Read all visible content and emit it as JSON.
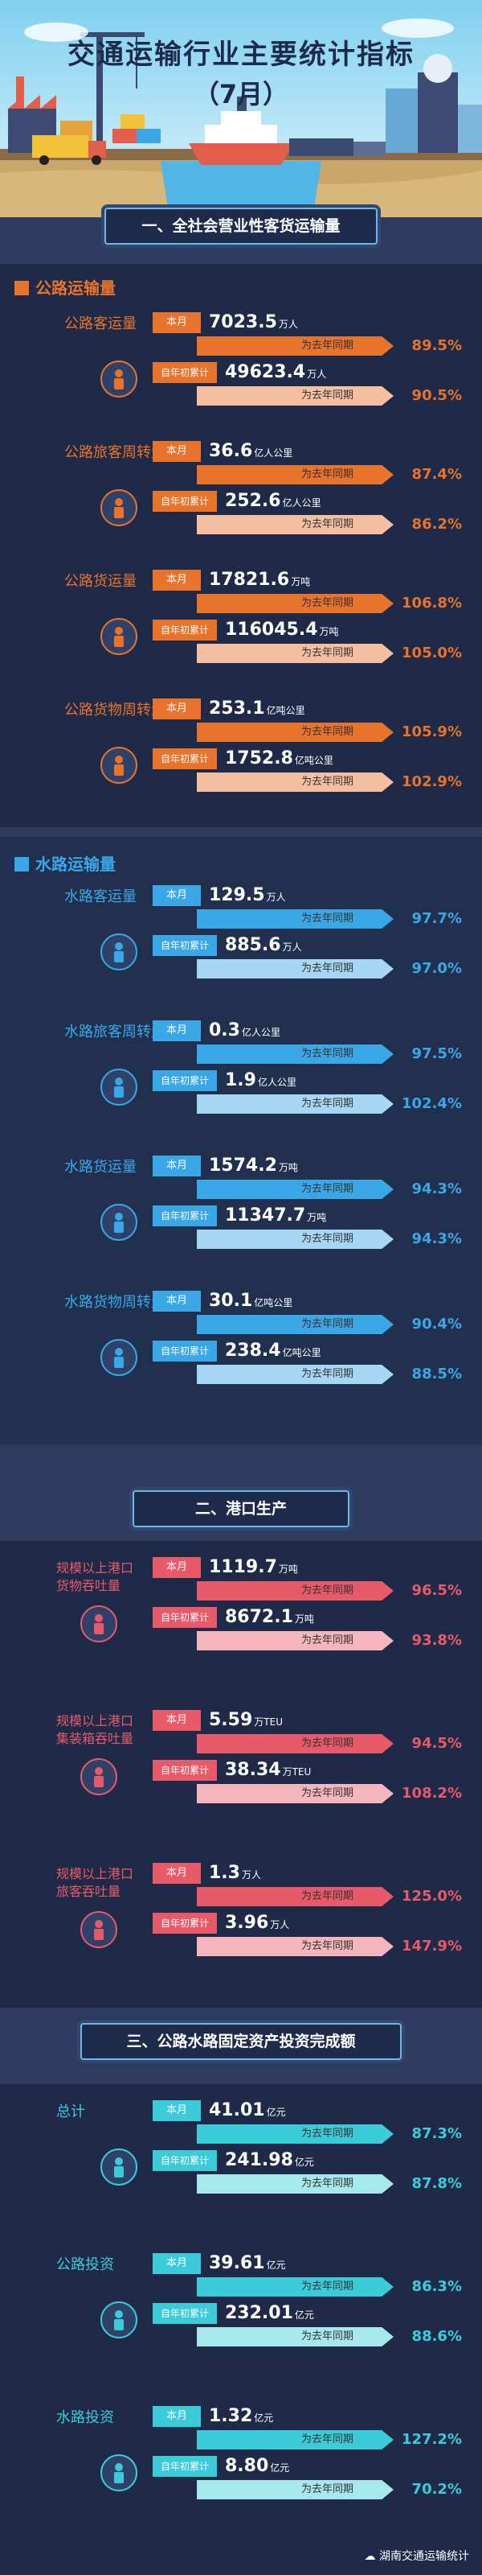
{
  "header": {
    "title": "交通运输行业主要统计指标",
    "subtitle": "（7月）"
  },
  "sections": {
    "s1": "一、全社会营业性客货运输量",
    "s2": "二、港口生产",
    "s3": "三、公路水路固定资产投资完成额"
  },
  "common": {
    "month_tag": "本月",
    "ytd_tag": "自年初累计",
    "cmp_label": "为去年同期"
  },
  "road": {
    "title": "公路运输量",
    "color": "#e8732a",
    "metrics": [
      {
        "label": "公路客运量",
        "month": "7023.5",
        "month_unit": "万人",
        "month_pct": "89.5%",
        "ytd": "49623.4",
        "ytd_unit": "万人",
        "ytd_pct": "90.5%"
      },
      {
        "label": "公路旅客周转量",
        "month": "36.6",
        "month_unit": "亿人公里",
        "month_pct": "87.4%",
        "ytd": "252.6",
        "ytd_unit": "亿人公里",
        "ytd_pct": "86.2%"
      },
      {
        "label": "公路货运量",
        "month": "17821.6",
        "month_unit": "万吨",
        "month_pct": "106.8%",
        "ytd": "116045.4",
        "ytd_unit": "万吨",
        "ytd_pct": "105.0%"
      },
      {
        "label": "公路货物周转量",
        "month": "253.1",
        "month_unit": "亿吨公里",
        "month_pct": "105.9%",
        "ytd": "1752.8",
        "ytd_unit": "亿吨公里",
        "ytd_pct": "102.9%"
      }
    ]
  },
  "water": {
    "title": "水路运输量",
    "color": "#3aa7e6",
    "metrics": [
      {
        "label": "水路客运量",
        "month": "129.5",
        "month_unit": "万人",
        "month_pct": "97.7%",
        "ytd": "885.6",
        "ytd_unit": "万人",
        "ytd_pct": "97.0%"
      },
      {
        "label": "水路旅客周转量",
        "month": "0.3",
        "month_unit": "亿人公里",
        "month_pct": "97.5%",
        "ytd": "1.9",
        "ytd_unit": "亿人公里",
        "ytd_pct": "102.4%"
      },
      {
        "label": "水路货运量",
        "month": "1574.2",
        "month_unit": "万吨",
        "month_pct": "94.3%",
        "ytd": "11347.7",
        "ytd_unit": "万吨",
        "ytd_pct": "94.3%"
      },
      {
        "label": "水路货物周转量",
        "month": "30.1",
        "month_unit": "亿吨公里",
        "month_pct": "90.4%",
        "ytd": "238.4",
        "ytd_unit": "亿吨公里",
        "ytd_pct": "88.5%"
      }
    ]
  },
  "port": {
    "color": "#e85a6a",
    "metrics": [
      {
        "label1": "规模以上港口",
        "label2": "货物吞吐量",
        "month": "1119.7",
        "month_unit": "万吨",
        "month_pct": "96.5%",
        "ytd": "8672.1",
        "ytd_unit": "万吨",
        "ytd_pct": "93.8%"
      },
      {
        "label1": "规模以上港口",
        "label2": "集装箱吞吐量",
        "month": "5.59",
        "month_unit": "万TEU",
        "month_pct": "94.5%",
        "ytd": "38.34",
        "ytd_unit": "万TEU",
        "ytd_pct": "108.2%"
      },
      {
        "label1": "规模以上港口",
        "label2": "旅客吞吐量",
        "month": "1.3",
        "month_unit": "万人",
        "month_pct": "125.0%",
        "ytd": "3.96",
        "ytd_unit": "万人",
        "ytd_pct": "147.9%"
      }
    ]
  },
  "invest": {
    "color": "#3ccbd8",
    "metrics": [
      {
        "label": "总计",
        "month": "41.01",
        "month_unit": "亿元",
        "month_pct": "87.3%",
        "ytd": "241.98",
        "ytd_unit": "亿元",
        "ytd_pct": "87.8%"
      },
      {
        "label": "公路投资",
        "month": "39.61",
        "month_unit": "亿元",
        "month_pct": "86.3%",
        "ytd": "232.01",
        "ytd_unit": "亿元",
        "ytd_pct": "88.6%"
      },
      {
        "label": "水路投资",
        "month": "1.32",
        "month_unit": "亿元",
        "month_pct": "127.2%",
        "ytd": "8.80",
        "ytd_unit": "亿元",
        "ytd_pct": "70.2%"
      }
    ]
  },
  "footer": {
    "text": "湖南交通运输统计"
  }
}
